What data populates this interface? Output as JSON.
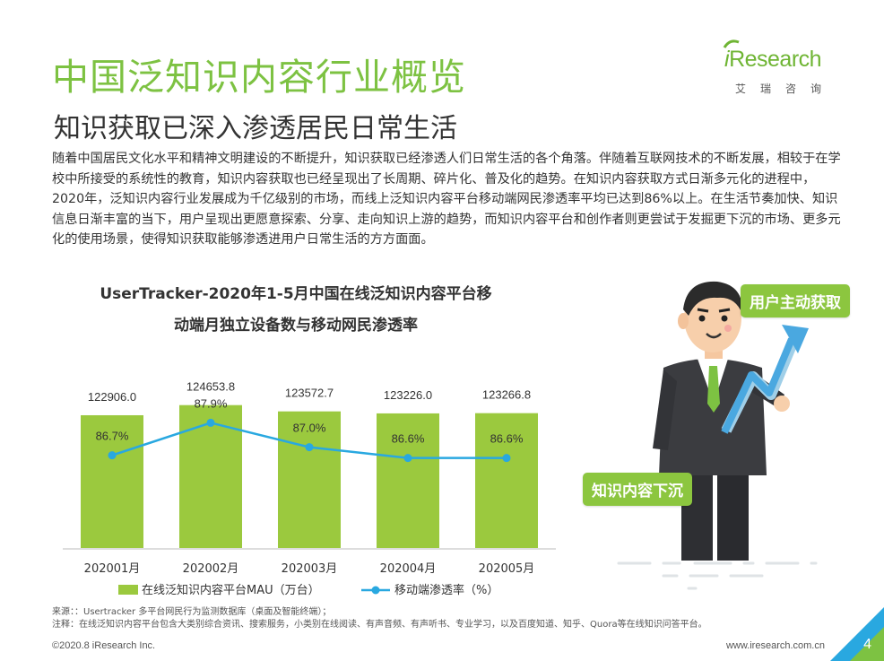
{
  "page": {
    "title": "中国泛知识内容行业概览",
    "subtitle": "知识获取已深入渗透居民日常生活",
    "paragraph": "随着中国居民文化水平和精神文明建设的不断提升，知识获取已经渗透人们日常生活的各个角落。伴随着互联网技术的不断发展，相较于在学校中所接受的系统性的教育，知识内容获取也已经呈现出了长周期、碎片化、普及化的趋势。在知识内容获取方式日渐多元化的进程中，2020年，泛知识内容行业发展成为千亿级别的市场，而线上泛知识内容平台移动端网民渗透率平均已达到86%以上。在生活节奏加快、知识信息日渐丰富的当下，用户呈现出更愿意探索、分享、走向知识上游的趋势，而知识内容平台和创作者则更尝试于发掘更下沉的市场、更多元化的使用场景，使得知识获取能够渗透进用户日常生活的方方面面。",
    "source": "来源：：Usertracker 多平台网民行为监测数据库（桌面及智能终端）；",
    "note": "注释：在线泛知识内容平台包含大类别综合资讯、搜索服务，小类别在线阅读、有声音频、有声听书、专业学习，以及百度知道、知乎、Quora等在线知识问答平台。",
    "copyright": "©2020.8 iResearch Inc.",
    "website": "www.iresearch.com.cn",
    "page_number": "4"
  },
  "logo": {
    "text_i": "i",
    "text_rest": "Research",
    "cn": "艾瑞咨询"
  },
  "illustration": {
    "badge_top": "用户主动获取",
    "badge_bottom": "知识内容下沉",
    "icon": "businessman-with-rising-arrow"
  },
  "colors": {
    "brand_green": "#7dc242",
    "bar": "#9bc93e",
    "line": "#29a8e0"
  },
  "chart_data": {
    "type": "bar",
    "title": "UserTracker-2020年1-5月中国在线泛知识内容平台移动端月独立设备数与移动网民渗透率",
    "title_line1": "UserTracker-2020年1-5月中国在线泛知识内容平台移",
    "title_line2": "动端月独立设备数与移动网民渗透率",
    "categories": [
      "202001月",
      "202002月",
      "202003月",
      "202004月",
      "202005月"
    ],
    "series": [
      {
        "name": "在线泛知识内容平台MAU（万台）",
        "type": "bar",
        "values": [
          122906.0,
          124653.8,
          123572.7,
          123226.0,
          123266.8
        ],
        "labels": [
          "122906.0",
          "124653.8",
          "123572.7",
          "123226.0",
          "123266.8"
        ]
      },
      {
        "name": "移动端渗透率（%）",
        "type": "line",
        "values": [
          86.7,
          87.9,
          87.0,
          86.6,
          86.6
        ],
        "labels": [
          "86.7%",
          "87.9%",
          "87.0%",
          "86.6%",
          "86.6%"
        ]
      }
    ],
    "bar_axis_range": [
      100000,
      126000
    ],
    "line_axis_range": [
      80,
      90
    ],
    "grid": false,
    "legend_position": "bottom"
  }
}
